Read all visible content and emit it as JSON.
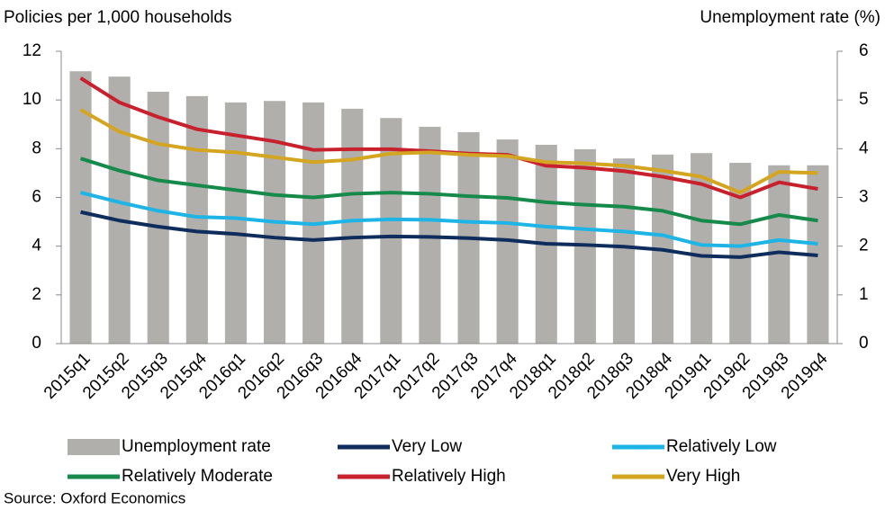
{
  "chart_data": {
    "type": "combo",
    "y_label": "Policies per 1,000 households",
    "y2_label": "Unemployment rate (%)",
    "source": "Source: Oxford Economics",
    "categories": [
      "2015q1",
      "2015q2",
      "2015q3",
      "2015q4",
      "2016q1",
      "2016q2",
      "2016q3",
      "2016q4",
      "2017q1",
      "2017q2",
      "2017q3",
      "2017q4",
      "2018q1",
      "2018q2",
      "2018q3",
      "2018q4",
      "2019q1",
      "2019q2",
      "2019q3",
      "2019q4"
    ],
    "ylim": [
      0,
      12
    ],
    "yticks": [
      0,
      2,
      4,
      6,
      8,
      10,
      12
    ],
    "y2lim": [
      0,
      6
    ],
    "y2ticks": [
      0,
      1,
      2,
      3,
      4,
      5,
      6
    ],
    "series": [
      {
        "name": "Unemployment rate",
        "type": "bar",
        "axis": "y2",
        "color": "#b0afab",
        "values": [
          5.59,
          5.48,
          5.17,
          5.08,
          4.95,
          4.98,
          4.95,
          4.82,
          4.63,
          4.45,
          4.34,
          4.19,
          4.08,
          3.99,
          3.8,
          3.88,
          3.91,
          3.71,
          3.66,
          3.66
        ]
      },
      {
        "name": "Very Low",
        "type": "line",
        "color": "#0f2d5c",
        "values": [
          5.4,
          5.05,
          4.8,
          4.6,
          4.5,
          4.35,
          4.25,
          4.35,
          4.4,
          4.38,
          4.33,
          4.25,
          4.1,
          4.05,
          3.98,
          3.85,
          3.6,
          3.55,
          3.75,
          3.62
        ]
      },
      {
        "name": "Relatively Low",
        "type": "line",
        "color": "#1eb4e6",
        "values": [
          6.2,
          5.8,
          5.45,
          5.2,
          5.15,
          5.0,
          4.9,
          5.05,
          5.1,
          5.08,
          5.0,
          4.95,
          4.8,
          4.7,
          4.6,
          4.45,
          4.05,
          4.0,
          4.25,
          4.1
        ]
      },
      {
        "name": "Relatively Moderate",
        "type": "line",
        "color": "#168a4a",
        "values": [
          7.6,
          7.1,
          6.7,
          6.5,
          6.3,
          6.1,
          6.0,
          6.15,
          6.2,
          6.15,
          6.05,
          5.98,
          5.8,
          5.7,
          5.62,
          5.45,
          5.05,
          4.9,
          5.28,
          5.05
        ]
      },
      {
        "name": "Relatively High",
        "type": "line",
        "color": "#c8202c",
        "values": [
          10.9,
          9.9,
          9.3,
          8.8,
          8.55,
          8.3,
          7.95,
          7.98,
          7.98,
          7.9,
          7.8,
          7.75,
          7.3,
          7.22,
          7.08,
          6.85,
          6.55,
          6.0,
          6.62,
          6.35
        ]
      },
      {
        "name": "Very High",
        "type": "line",
        "color": "#d4a520",
        "values": [
          9.6,
          8.7,
          8.2,
          7.95,
          7.85,
          7.65,
          7.45,
          7.55,
          7.8,
          7.85,
          7.75,
          7.7,
          7.45,
          7.4,
          7.3,
          7.1,
          6.85,
          6.2,
          7.05,
          7.0
        ]
      }
    ]
  }
}
